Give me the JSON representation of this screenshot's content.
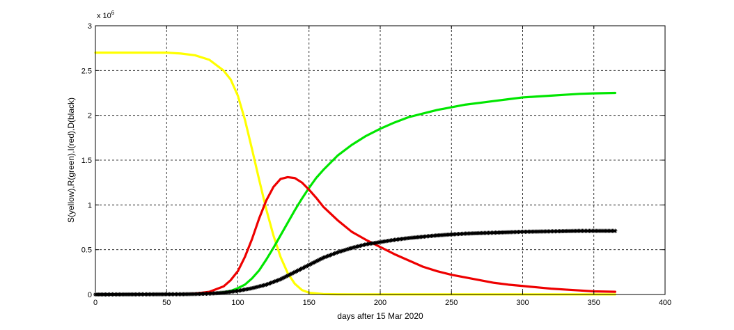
{
  "chart_data": {
    "type": "line",
    "title": "",
    "xlabel": "days after 15 Mar 2020",
    "ylabel": "S(yellow),R(green),I(red),D(black)",
    "exponent_label": "x 10",
    "exponent_power": "6",
    "xlim": [
      0,
      400
    ],
    "ylim": [
      0,
      3
    ],
    "xticks": [
      0,
      50,
      100,
      150,
      200,
      250,
      300,
      350,
      400
    ],
    "yticks": [
      0,
      0.5,
      1,
      1.5,
      2,
      2.5,
      3
    ],
    "xtick_labels": [
      "0",
      "50",
      "100",
      "150",
      "200",
      "250",
      "300",
      "350",
      "400"
    ],
    "ytick_labels": [
      "0",
      "0.5",
      "1",
      "1.5",
      "2",
      "2.5",
      "3"
    ],
    "grid": true,
    "legend": "none",
    "series": [
      {
        "color": "#ffff00",
        "points": [
          [
            0,
            2.7
          ],
          [
            20,
            2.7
          ],
          [
            40,
            2.7
          ],
          [
            50,
            2.7
          ],
          [
            60,
            2.69
          ],
          [
            70,
            2.67
          ],
          [
            80,
            2.62
          ],
          [
            90,
            2.5
          ],
          [
            95,
            2.4
          ],
          [
            100,
            2.22
          ],
          [
            105,
            1.95
          ],
          [
            110,
            1.62
          ],
          [
            115,
            1.28
          ],
          [
            120,
            0.95
          ],
          [
            125,
            0.66
          ],
          [
            130,
            0.42
          ],
          [
            135,
            0.24
          ],
          [
            140,
            0.12
          ],
          [
            145,
            0.05
          ],
          [
            150,
            0.02
          ],
          [
            160,
            0.005
          ],
          [
            170,
            0.002
          ],
          [
            200,
            0.001
          ],
          [
            250,
            0.001
          ],
          [
            300,
            0.001
          ],
          [
            365,
            0.001
          ]
        ]
      },
      {
        "color": "#00e600",
        "points": [
          [
            0,
            0
          ],
          [
            60,
            0.002
          ],
          [
            70,
            0.005
          ],
          [
            80,
            0.01
          ],
          [
            90,
            0.025
          ],
          [
            95,
            0.04
          ],
          [
            100,
            0.07
          ],
          [
            105,
            0.11
          ],
          [
            110,
            0.18
          ],
          [
            115,
            0.27
          ],
          [
            120,
            0.39
          ],
          [
            125,
            0.52
          ],
          [
            130,
            0.66
          ],
          [
            135,
            0.8
          ],
          [
            140,
            0.94
          ],
          [
            145,
            1.07
          ],
          [
            150,
            1.19
          ],
          [
            155,
            1.3
          ],
          [
            160,
            1.39
          ],
          [
            170,
            1.55
          ],
          [
            180,
            1.67
          ],
          [
            190,
            1.77
          ],
          [
            200,
            1.85
          ],
          [
            210,
            1.92
          ],
          [
            220,
            1.98
          ],
          [
            230,
            2.02
          ],
          [
            240,
            2.06
          ],
          [
            250,
            2.09
          ],
          [
            260,
            2.12
          ],
          [
            270,
            2.14
          ],
          [
            280,
            2.16
          ],
          [
            290,
            2.18
          ],
          [
            300,
            2.2
          ],
          [
            310,
            2.21
          ],
          [
            320,
            2.22
          ],
          [
            330,
            2.23
          ],
          [
            340,
            2.24
          ],
          [
            350,
            2.245
          ],
          [
            365,
            2.25
          ]
        ]
      },
      {
        "color": "#ee0000",
        "points": [
          [
            0,
            0
          ],
          [
            60,
            0.003
          ],
          [
            70,
            0.01
          ],
          [
            80,
            0.03
          ],
          [
            90,
            0.09
          ],
          [
            95,
            0.16
          ],
          [
            100,
            0.26
          ],
          [
            105,
            0.42
          ],
          [
            110,
            0.62
          ],
          [
            115,
            0.85
          ],
          [
            120,
            1.05
          ],
          [
            125,
            1.2
          ],
          [
            130,
            1.29
          ],
          [
            135,
            1.31
          ],
          [
            140,
            1.3
          ],
          [
            145,
            1.25
          ],
          [
            150,
            1.17
          ],
          [
            155,
            1.08
          ],
          [
            160,
            0.98
          ],
          [
            170,
            0.83
          ],
          [
            180,
            0.7
          ],
          [
            190,
            0.61
          ],
          [
            200,
            0.53
          ],
          [
            210,
            0.45
          ],
          [
            220,
            0.38
          ],
          [
            230,
            0.31
          ],
          [
            240,
            0.26
          ],
          [
            250,
            0.22
          ],
          [
            260,
            0.19
          ],
          [
            270,
            0.16
          ],
          [
            280,
            0.13
          ],
          [
            290,
            0.11
          ],
          [
            300,
            0.095
          ],
          [
            310,
            0.08
          ],
          [
            320,
            0.065
          ],
          [
            330,
            0.055
          ],
          [
            340,
            0.045
          ],
          [
            350,
            0.035
          ],
          [
            365,
            0.03
          ]
        ]
      },
      {
        "color": "#000000",
        "points": [
          [
            0,
            0
          ],
          [
            60,
            0.003
          ],
          [
            70,
            0.005
          ],
          [
            80,
            0.01
          ],
          [
            90,
            0.02
          ],
          [
            100,
            0.04
          ],
          [
            110,
            0.07
          ],
          [
            120,
            0.11
          ],
          [
            130,
            0.17
          ],
          [
            140,
            0.25
          ],
          [
            150,
            0.33
          ],
          [
            160,
            0.41
          ],
          [
            170,
            0.47
          ],
          [
            180,
            0.52
          ],
          [
            190,
            0.56
          ],
          [
            200,
            0.585
          ],
          [
            210,
            0.61
          ],
          [
            220,
            0.63
          ],
          [
            230,
            0.645
          ],
          [
            240,
            0.66
          ],
          [
            250,
            0.67
          ],
          [
            260,
            0.68
          ],
          [
            270,
            0.685
          ],
          [
            280,
            0.69
          ],
          [
            290,
            0.695
          ],
          [
            300,
            0.7
          ],
          [
            320,
            0.705
          ],
          [
            340,
            0.71
          ],
          [
            365,
            0.71
          ]
        ]
      }
    ]
  }
}
